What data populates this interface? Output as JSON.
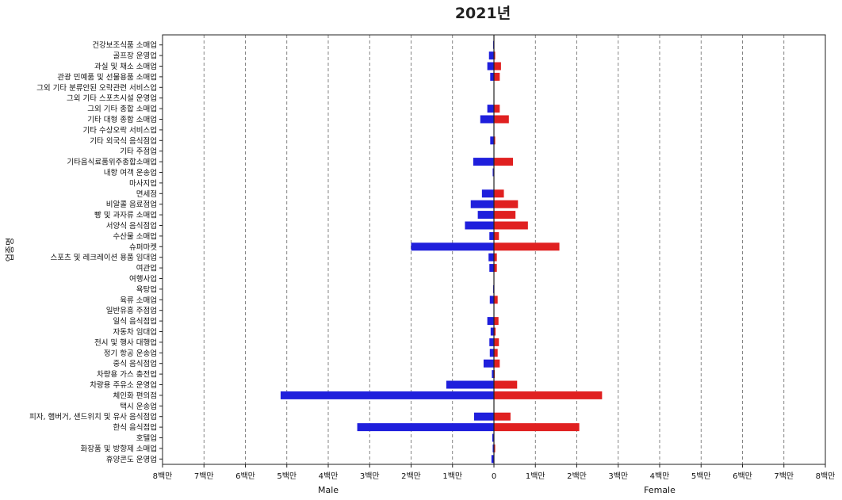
{
  "chart_data": {
    "type": "bar",
    "orientation": "horizontal-butterfly",
    "title": "2021년",
    "ylabel": "업종명",
    "xlabel_left": "Male",
    "xlabel_right": "Female",
    "xlim": [
      -8000000,
      8000000
    ],
    "xticks": [
      -8000000,
      -7000000,
      -6000000,
      -5000000,
      -4000000,
      -3000000,
      -2000000,
      -1000000,
      0,
      1000000,
      2000000,
      3000000,
      4000000,
      5000000,
      6000000,
      7000000,
      8000000
    ],
    "xtick_labels": [
      "8백만",
      "7백만",
      "6백만",
      "5백만",
      "4백만",
      "3백만",
      "2백만",
      "1백만",
      "0",
      "1백만",
      "2백만",
      "3백만",
      "4백만",
      "5백만",
      "6백만",
      "7백만",
      "8백만"
    ],
    "grid": "vertical dashed",
    "colors": {
      "male": "#1f1fdc",
      "female": "#e02020"
    },
    "categories": [
      "건강보조식품 소매업",
      "골프장 운영업",
      "과실 및 채소 소매업",
      "관광 민예품 및 선물용품 소매업",
      "그외 기타 분류안된 오락관련 서비스업",
      "그외 기타 스포츠시설 운영업",
      "그외 기타 종합 소매업",
      "기타 대형 종합 소매업",
      "기타 수상오락 서비스업",
      "기타 외국식 음식점업",
      "기타 주점업",
      "기타음식료품위주종합소매업",
      "내항 여객 운송업",
      "마사지업",
      "면세점",
      "비알콜 음료점업",
      "빵 및 과자류 소매업",
      "서양식 음식점업",
      "수산물 소매업",
      "슈퍼마켓",
      "스포츠 및 레크레이션 용품 임대업",
      "여관업",
      "여행사업",
      "욕탕업",
      "육류 소매업",
      "일반유흥 주점업",
      "일식 음식점업",
      "자동차 임대업",
      "전시 및 행사 대행업",
      "정기 항공 운송업",
      "중식 음식점업",
      "차량용 가스 충전업",
      "차량용 주유소 운영업",
      "체인화 편의점",
      "택시 운송업",
      "피자, 햄버거, 샌드위치 및 유사 음식점업",
      "한식 음식점업",
      "호텔업",
      "화장품 및 방향제 소매업",
      "휴양콘도 운영업"
    ],
    "series": [
      {
        "name": "Male",
        "values": [
          20000,
          120000,
          160000,
          90000,
          0,
          0,
          160000,
          330000,
          0,
          90000,
          0,
          500000,
          30000,
          0,
          290000,
          560000,
          390000,
          700000,
          110000,
          2000000,
          130000,
          110000,
          0,
          20000,
          100000,
          0,
          160000,
          80000,
          110000,
          100000,
          250000,
          50000,
          1150000,
          5150000,
          0,
          480000,
          3300000,
          40000,
          30000,
          60000
        ]
      },
      {
        "name": "Female",
        "values": [
          10000,
          30000,
          170000,
          140000,
          0,
          0,
          140000,
          360000,
          0,
          30000,
          0,
          460000,
          10000,
          0,
          240000,
          580000,
          520000,
          820000,
          120000,
          1580000,
          70000,
          70000,
          0,
          10000,
          90000,
          0,
          110000,
          40000,
          120000,
          90000,
          140000,
          20000,
          560000,
          2610000,
          0,
          400000,
          2060000,
          10000,
          30000,
          10000
        ]
      }
    ]
  }
}
